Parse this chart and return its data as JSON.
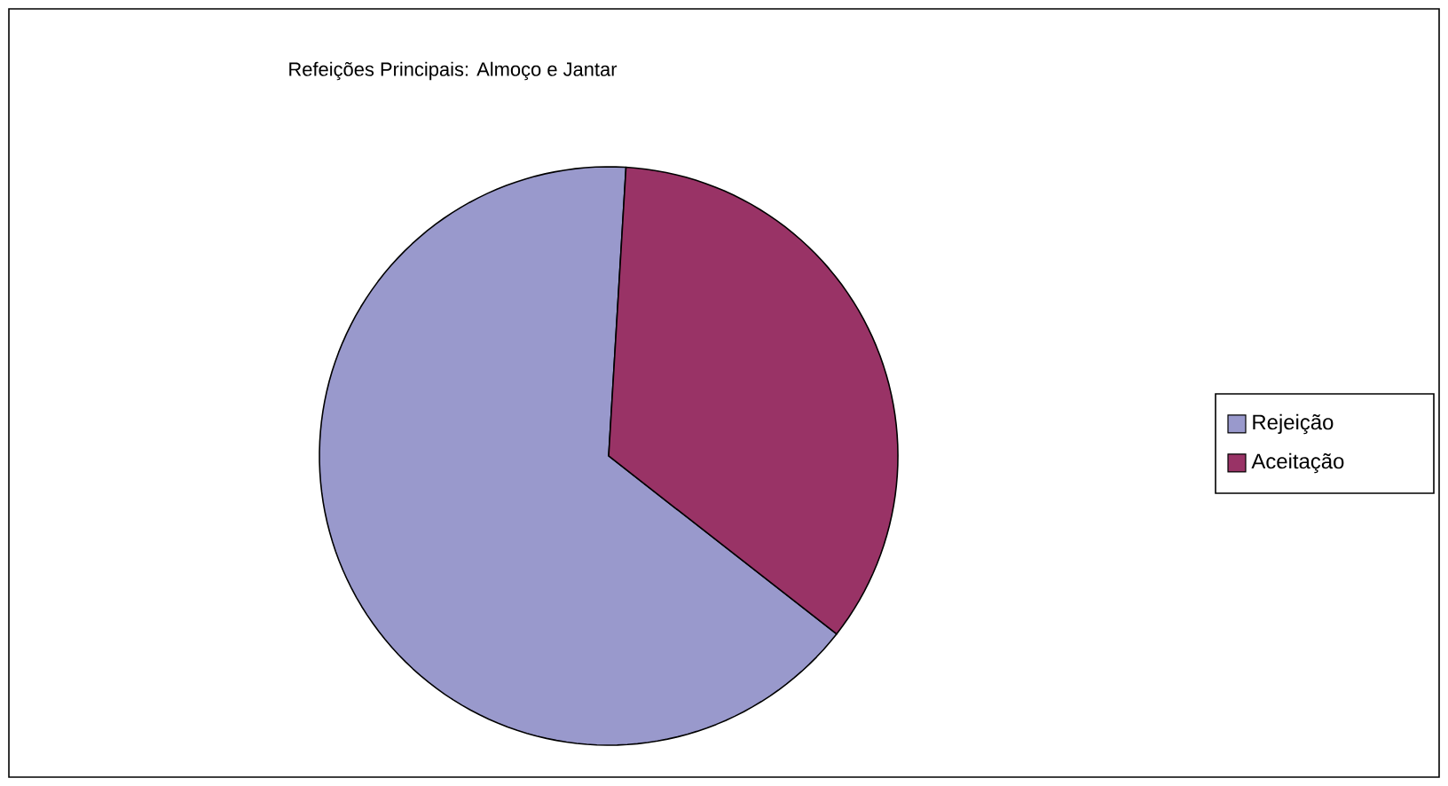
{
  "chart_data": {
    "type": "pie",
    "title": "Refeições Principais: Almoço e Jantar",
    "categories": [
      "Rejeição",
      "Aceitação"
    ],
    "values": [
      65.4,
      34.6
    ],
    "colors": [
      "#9999cc",
      "#993366"
    ],
    "legend": "right"
  }
}
